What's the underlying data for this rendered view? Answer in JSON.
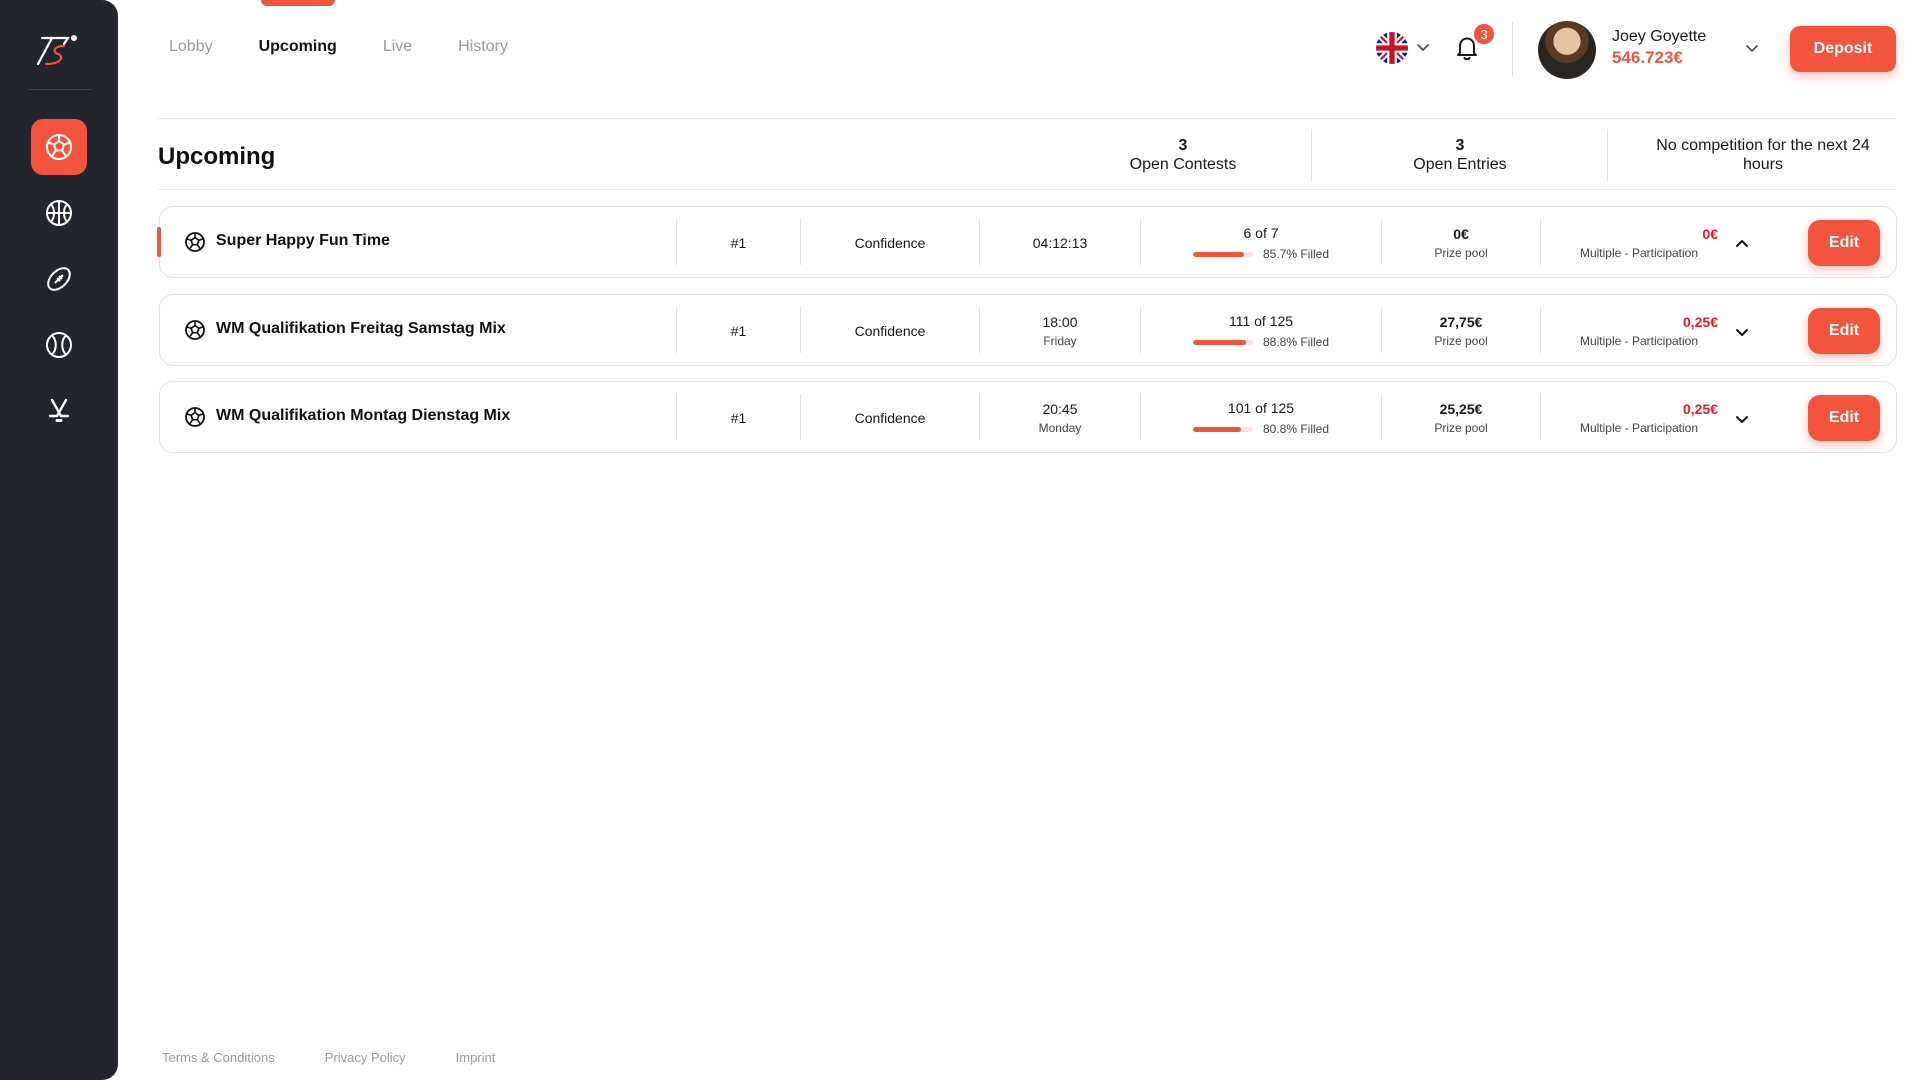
{
  "colors": {
    "accent": "#f2543d",
    "sidebar": "#22252b",
    "danger": "#e8192c"
  },
  "sidebar": {
    "logo_icon": "brand-logo-icon",
    "items": [
      {
        "icon": "soccer-ball-icon",
        "active": true
      },
      {
        "icon": "basketball-icon",
        "active": false
      },
      {
        "icon": "american-football-icon",
        "active": false
      },
      {
        "icon": "tennis-ball-icon",
        "active": false
      },
      {
        "icon": "ice-hockey-icon",
        "active": false
      }
    ]
  },
  "nav": {
    "tabs": [
      {
        "label": "Lobby",
        "active": false
      },
      {
        "label": "Upcoming",
        "active": true
      },
      {
        "label": "Live",
        "active": false
      },
      {
        "label": "History",
        "active": false
      }
    ]
  },
  "header": {
    "language_icon": "uk-flag-icon",
    "notification_count": "3",
    "user": {
      "name": "Joey Goyette",
      "balance": "546.723€"
    },
    "deposit_label": "Deposit"
  },
  "summary": {
    "title": "Upcoming",
    "open_contests": {
      "value": "3",
      "label": "Open Contests"
    },
    "open_entries": {
      "value": "3",
      "label": "Open Entries"
    },
    "next_competition": "No competition for the next 24 hours"
  },
  "contests": [
    {
      "name": "Super Happy Fun Time",
      "rank": "#1",
      "type": "Confidence",
      "time": "04:12:13",
      "time_sub": "",
      "entries": "6 of 7",
      "fill_percent": 85.7,
      "fill_label": "85.7% Filled",
      "prize": "0€",
      "prize_label": "Prize pool",
      "entry_fee": "0€",
      "entry_label": "Multiple - Participation",
      "expanded": true,
      "edit_label": "Edit"
    },
    {
      "name": "WM Qualifikation Freitag Samstag Mix",
      "rank": "#1",
      "type": "Confidence",
      "time": "18:00",
      "time_sub": "Friday",
      "entries": "111 of 125",
      "fill_percent": 88.8,
      "fill_label": "88.8% Filled",
      "prize": "27,75€",
      "prize_label": "Prize pool",
      "entry_fee": "0,25€",
      "entry_label": "Multiple - Participation",
      "expanded": false,
      "edit_label": "Edit"
    },
    {
      "name": "WM Qualifikation Montag Dienstag Mix",
      "rank": "#1",
      "type": "Confidence",
      "time": "20:45",
      "time_sub": "Monday",
      "entries": "101 of 125",
      "fill_percent": 80.8,
      "fill_label": "80.8% Filled",
      "prize": "25,25€",
      "prize_label": "Prize pool",
      "entry_fee": "0,25€",
      "entry_label": "Multiple - Participation",
      "expanded": false,
      "edit_label": "Edit"
    }
  ],
  "footer": {
    "links": [
      "Terms & Conditions",
      "Privacy Policy",
      "Imprint"
    ]
  }
}
